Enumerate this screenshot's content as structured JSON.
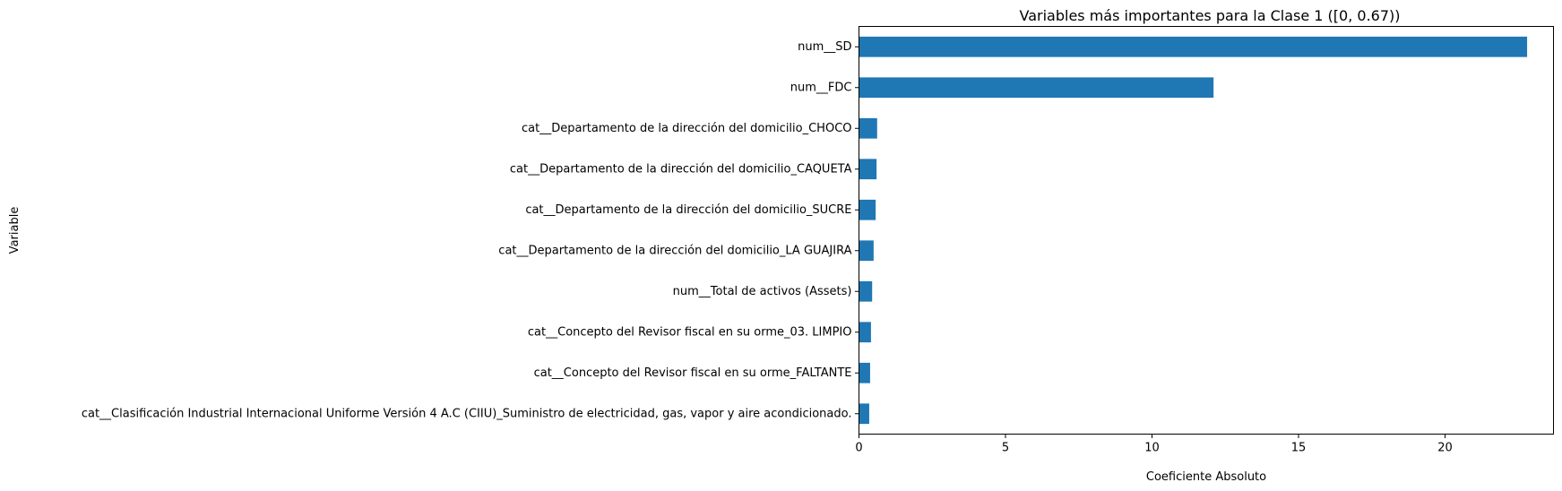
{
  "chart_data": {
    "type": "bar",
    "orientation": "horizontal",
    "title": "Variables más importantes para la Clase 1 ([0, 0.67))",
    "xlabel": "Coeficiente Absoluto",
    "ylabel": "Variable",
    "xlim": [
      0,
      23.7
    ],
    "xticks": [
      0,
      5,
      10,
      15,
      20
    ],
    "bar_color": "#1f77b4",
    "grid": false,
    "legend": "none",
    "categories": [
      "num__SD",
      "num__FDC",
      "cat__Departamento de la dirección del domicilio_CHOCO",
      "cat__Departamento de la dirección del domicilio_CAQUETA",
      "cat__Departamento de la dirección del domicilio_SUCRE",
      "cat__Departamento de la dirección del domicilio_LA GUAJIRA",
      "num__Total de activos (Assets)",
      "cat__Concepto del Revisor fiscal en su orme_03. LIMPIO",
      "cat__Concepto del Revisor fiscal en su orme_FALTANTE",
      "cat__Clasificación Industrial Internacional Uniforme Versión 4 A.C (CIIU)_Suministro de electricidad, gas, vapor y aire acondicionado."
    ],
    "values": [
      22.8,
      12.1,
      0.62,
      0.6,
      0.57,
      0.5,
      0.45,
      0.41,
      0.38,
      0.35
    ]
  }
}
